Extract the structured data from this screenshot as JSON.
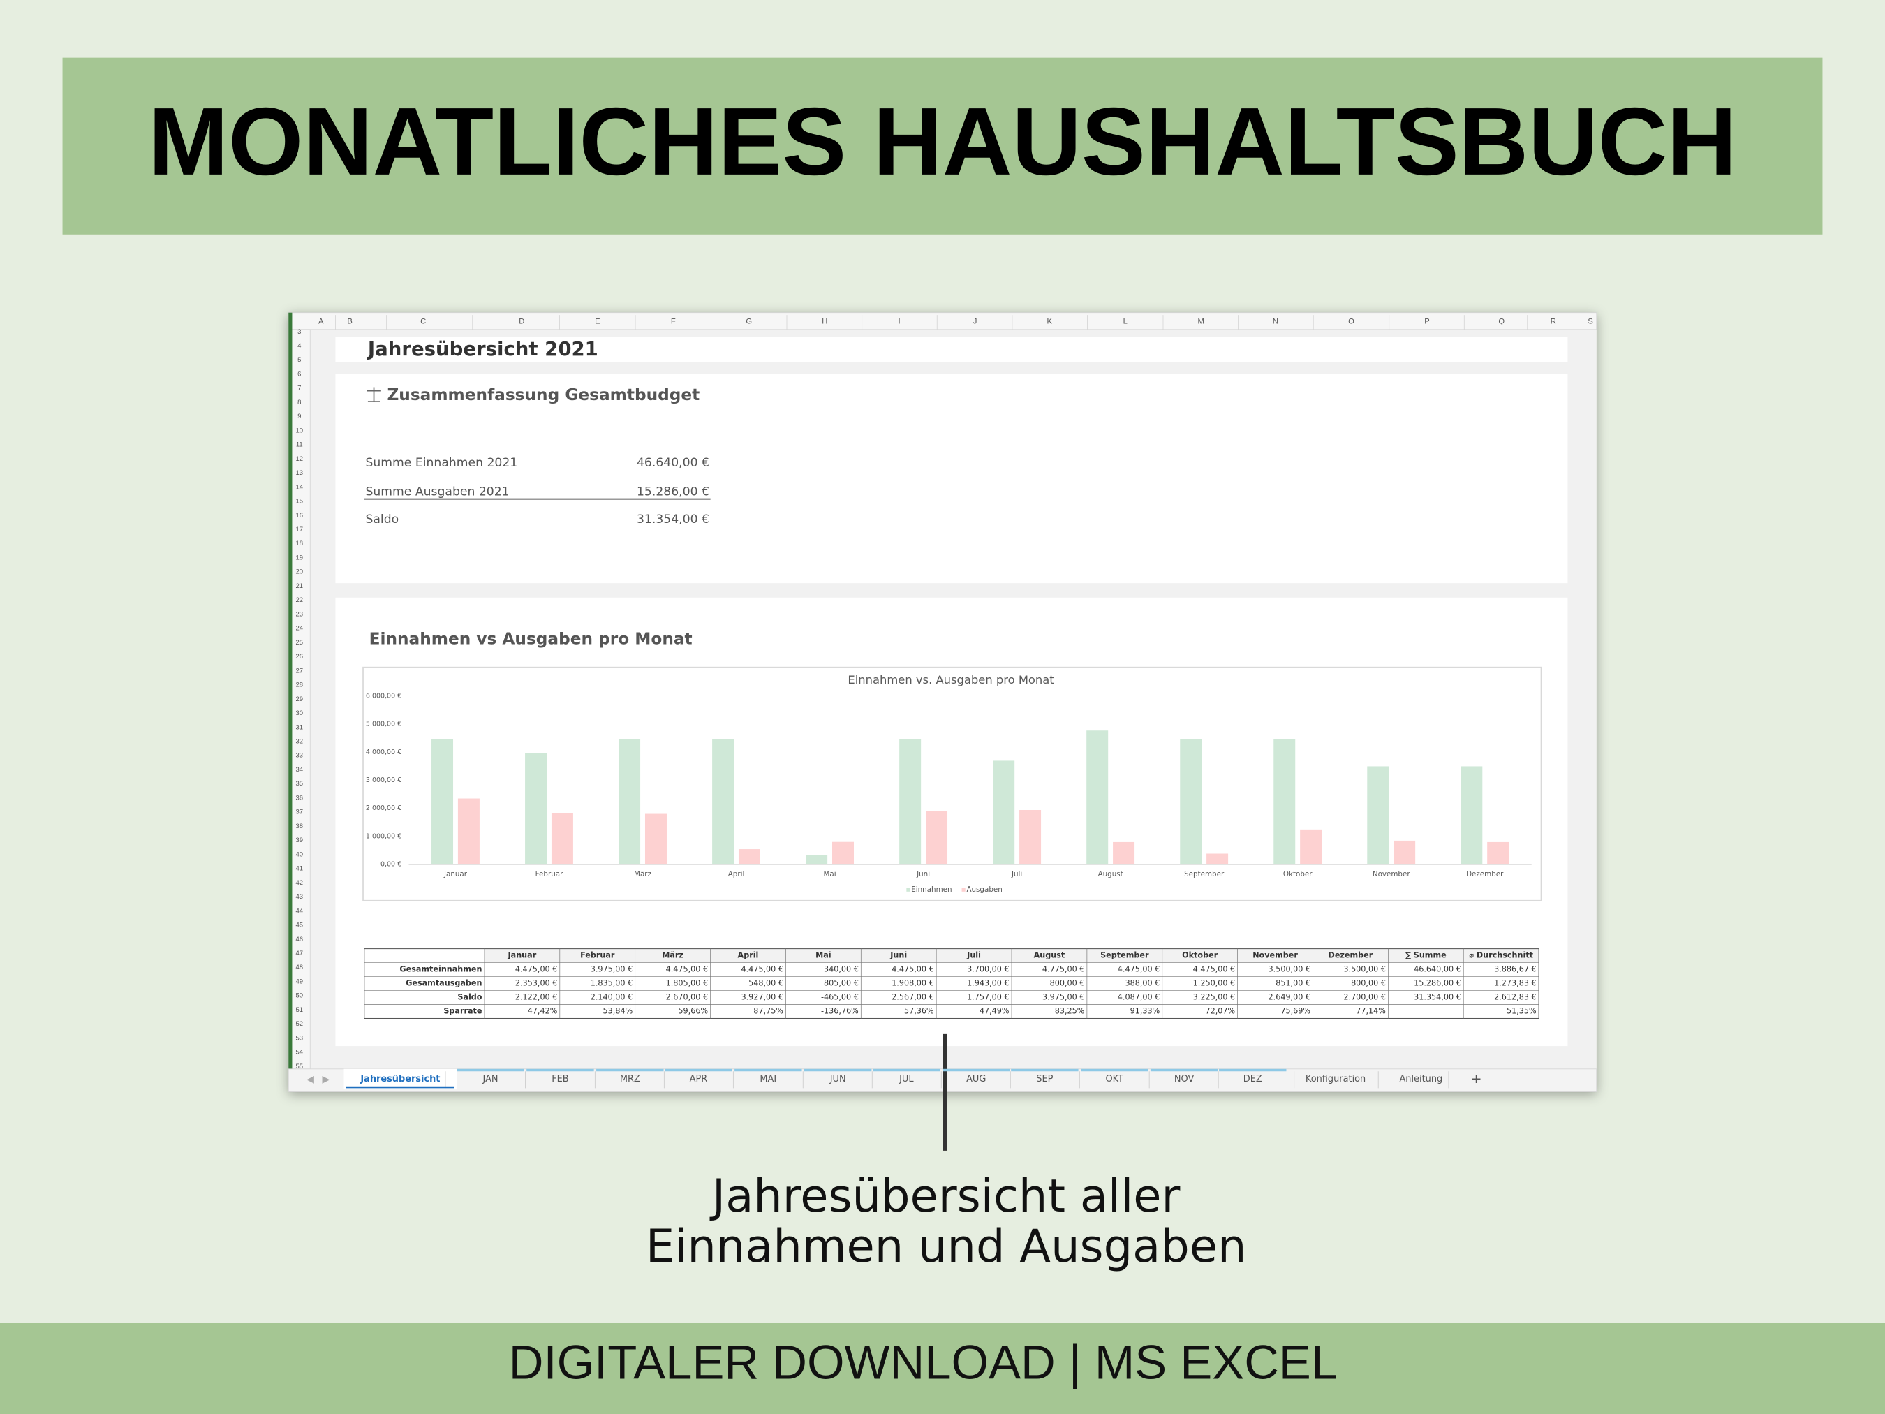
{
  "header": {
    "title": "MONATLICHES HAUSHALTSBUCH"
  },
  "sheet": {
    "column_letters": [
      "A",
      "B",
      "C",
      "D",
      "E",
      "F",
      "G",
      "H",
      "I",
      "J",
      "K",
      "L",
      "M",
      "N",
      "O",
      "P",
      "Q",
      "R",
      "S"
    ],
    "row_numbers": [
      3,
      4,
      5,
      6,
      7,
      8,
      9,
      10,
      11,
      12,
      13,
      14,
      15,
      16,
      17,
      18,
      19,
      20,
      21,
      22,
      23,
      24,
      25,
      26,
      27,
      28,
      29,
      30,
      31,
      32,
      33,
      34,
      35,
      36,
      37,
      38,
      39,
      40,
      41,
      42,
      43,
      44,
      45,
      46,
      47,
      48,
      49,
      50,
      51,
      52,
      53,
      54,
      55
    ],
    "title": "Jahresübersicht 2021",
    "summary": {
      "title": "Zusammenfassung Gesamtbudget",
      "rows": [
        {
          "label": "Summe Einnahmen 2021",
          "value": "46.640,00 €"
        },
        {
          "label": "Summe Ausgaben 2021",
          "value": "15.286,00 €"
        },
        {
          "label": "Saldo",
          "value": "31.354,00 €"
        }
      ]
    },
    "chart_section_title": "Einnahmen vs Ausgaben pro Monat",
    "table": {
      "columns": [
        "Januar",
        "Februar",
        "März",
        "April",
        "Mai",
        "Juni",
        "Juli",
        "August",
        "September",
        "Oktober",
        "November",
        "Dezember",
        "∑ Summe",
        "⌀ Durchschnitt"
      ],
      "rows": [
        {
          "label": "Gesamteinnahmen",
          "cells": [
            "4.475,00 €",
            "3.975,00 €",
            "4.475,00 €",
            "4.475,00 €",
            "340,00 €",
            "4.475,00 €",
            "3.700,00 €",
            "4.775,00 €",
            "4.475,00 €",
            "4.475,00 €",
            "3.500,00 €",
            "3.500,00 €",
            "46.640,00 €",
            "3.886,67 €"
          ]
        },
        {
          "label": "Gesamtausgaben",
          "cells": [
            "2.353,00 €",
            "1.835,00 €",
            "1.805,00 €",
            "548,00 €",
            "805,00 €",
            "1.908,00 €",
            "1.943,00 €",
            "800,00 €",
            "388,00 €",
            "1.250,00 €",
            "851,00 €",
            "800,00 €",
            "15.286,00 €",
            "1.273,83 €"
          ]
        },
        {
          "label": "Saldo",
          "cells": [
            "2.122,00 €",
            "2.140,00 €",
            "2.670,00 €",
            "3.927,00 €",
            "-465,00 €",
            "2.567,00 €",
            "1.757,00 €",
            "3.975,00 €",
            "4.087,00 €",
            "3.225,00 €",
            "2.649,00 €",
            "2.700,00 €",
            "31.354,00 €",
            "2.612,83 €"
          ]
        },
        {
          "label": "Sparrate",
          "cells": [
            "47,42%",
            "53,84%",
            "59,66%",
            "87,75%",
            "-136,76%",
            "57,36%",
            "47,49%",
            "83,25%",
            "91,33%",
            "72,07%",
            "75,69%",
            "77,14%",
            null,
            "51,35%"
          ]
        }
      ]
    },
    "tabs": [
      "Jahresübersicht",
      "JAN",
      "FEB",
      "MRZ",
      "APR",
      "MAI",
      "JUN",
      "JUL",
      "AUG",
      "SEP",
      "OKT",
      "NOV",
      "DEZ",
      "Konfiguration",
      "Anleitung",
      "+"
    ],
    "active_tab": 0
  },
  "chart_data": {
    "type": "bar",
    "title": "Einnahmen vs. Ausgaben pro Monat",
    "categories": [
      "Januar",
      "Februar",
      "März",
      "April",
      "Mai",
      "Juni",
      "Juli",
      "August",
      "September",
      "Oktober",
      "November",
      "Dezember"
    ],
    "series": [
      {
        "name": "Einnahmen",
        "color": "#cfe8d7",
        "values": [
          4475,
          3975,
          4475,
          4475,
          340,
          4475,
          3700,
          4775,
          4475,
          4475,
          3500,
          3500
        ]
      },
      {
        "name": "Ausgaben",
        "color": "#fdd1d1",
        "values": [
          2353,
          1835,
          1805,
          548,
          805,
          1908,
          1943,
          800,
          388,
          1250,
          851,
          800
        ]
      }
    ],
    "ylim": [
      0,
      6000
    ],
    "yticks": [
      {
        "value": 0,
        "label": "0,00 €"
      },
      {
        "value": 1000,
        "label": "1.000,00 €"
      },
      {
        "value": 2000,
        "label": "2.000,00 €"
      },
      {
        "value": 3000,
        "label": "3.000,00 €"
      },
      {
        "value": 4000,
        "label": "4.000,00 €"
      },
      {
        "value": 5000,
        "label": "5.000,00 €"
      },
      {
        "value": 6000,
        "label": "6.000,00 €"
      }
    ],
    "grid": false,
    "legend": "bottom"
  },
  "caption": [
    "Jahresübersicht aller",
    "Einnahmen und Ausgaben"
  ],
  "footer": {
    "text": "DIGITALER DOWNLOAD | MS EXCEL"
  }
}
